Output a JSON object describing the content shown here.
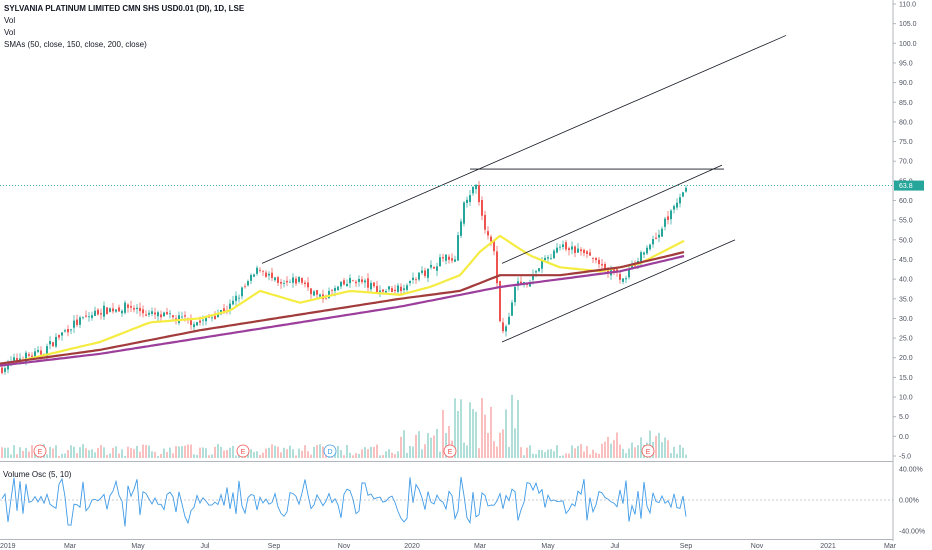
{
  "legend": {
    "title": "SYLVANIA PLATINUM LIMITED CMN SHS USD0.01 (DI), 1D, LSE",
    "line1": "Vol",
    "line2": "Vol",
    "line3": "SMAs (50, close, 150, close, 200, close)"
  },
  "oscillator": {
    "label": "Volume Osc (5, 10)",
    "ticks": [
      "40.00%",
      "0.00%",
      "-40.00%"
    ]
  },
  "last_price_label": "63.8",
  "event_markers": [
    "E",
    "E",
    "D",
    "E",
    "E",
    "E"
  ],
  "colors": {
    "up": "#26a69a",
    "down": "#ef5350",
    "sma50": "#f5ec42",
    "sma150": "#a23b3b",
    "sma200": "#9c3f9c",
    "osc": "#3f9be8",
    "trend": "#131722"
  },
  "chart_data": {
    "type": "candlestick",
    "title": "SYLVANIA PLATINUM LIMITED CMN SHS USD0.01 (DI), 1D, LSE",
    "x_ticks": [
      "2019",
      "Mar",
      "May",
      "Jul",
      "Sep",
      "Nov",
      "2020",
      "Mar",
      "May",
      "Jul",
      "Sep",
      "Nov",
      "2021",
      "Mar"
    ],
    "y_ticks": [
      "110.0",
      "105.0",
      "100.0",
      "95.0",
      "90.0",
      "85.0",
      "80.0",
      "75.0",
      "70.0",
      "65.0",
      "60.0",
      "55.0",
      "50.0",
      "45.0",
      "40.0",
      "35.0",
      "30.0",
      "25.0",
      "20.0",
      "15.0",
      "10.0",
      "5.0",
      "0.0",
      "-5.0"
    ],
    "ylim": [
      -5,
      110
    ],
    "last_price": 63.8,
    "series": [
      {
        "name": "SMA 50",
        "x": [
          0,
          50,
          100,
          150,
          200,
          230,
          260,
          300,
          350,
          400,
          430,
          460,
          480,
          500,
          530,
          560,
          600,
          640,
          686
        ],
        "values": [
          18,
          21,
          24,
          29,
          30,
          32,
          37,
          34,
          37,
          36,
          38,
          41,
          47,
          51,
          46,
          43,
          42,
          44,
          50
        ]
      },
      {
        "name": "SMA 150",
        "x": [
          0,
          100,
          200,
          300,
          400,
          460,
          500,
          560,
          620,
          686
        ],
        "values": [
          18.5,
          22,
          27,
          31,
          35,
          37,
          41,
          41,
          43,
          47
        ]
      },
      {
        "name": "SMA 200",
        "x": [
          0,
          100,
          200,
          300,
          400,
          460,
          500,
          560,
          620,
          686
        ],
        "values": [
          18,
          21,
          25,
          29,
          33,
          36,
          38,
          40,
          42,
          46
        ]
      }
    ],
    "close_anchors": {
      "x": [
        0,
        20,
        40,
        70,
        100,
        130,
        150,
        175,
        200,
        230,
        260,
        280,
        300,
        320,
        340,
        355,
        380,
        400,
        420,
        440,
        455,
        465,
        475,
        485,
        495,
        500,
        505,
        515,
        530,
        545,
        560,
        580,
        600,
        615,
        625,
        640,
        660,
        672,
        686
      ],
      "values": [
        17,
        20,
        21,
        28,
        32,
        33,
        31,
        30,
        29,
        33,
        43,
        38,
        40,
        35,
        38,
        40,
        37,
        38,
        41,
        45,
        46,
        60,
        64,
        53,
        46,
        30,
        26,
        38,
        40,
        45,
        48,
        47,
        44,
        41,
        40,
        46,
        52,
        58,
        64
      ]
    },
    "trendlines": [
      {
        "x1": 262,
        "y1": 44,
        "x2": 786,
        "y2": 102
      },
      {
        "x1": 470,
        "y1": 68,
        "x2": 724,
        "y2": 68
      },
      {
        "x1": 502,
        "y1": 44,
        "x2": 722,
        "y2": 69
      },
      {
        "x1": 502,
        "y1": 24,
        "x2": 735,
        "y2": 50
      }
    ],
    "osc_ylim": [
      -40,
      40
    ]
  }
}
